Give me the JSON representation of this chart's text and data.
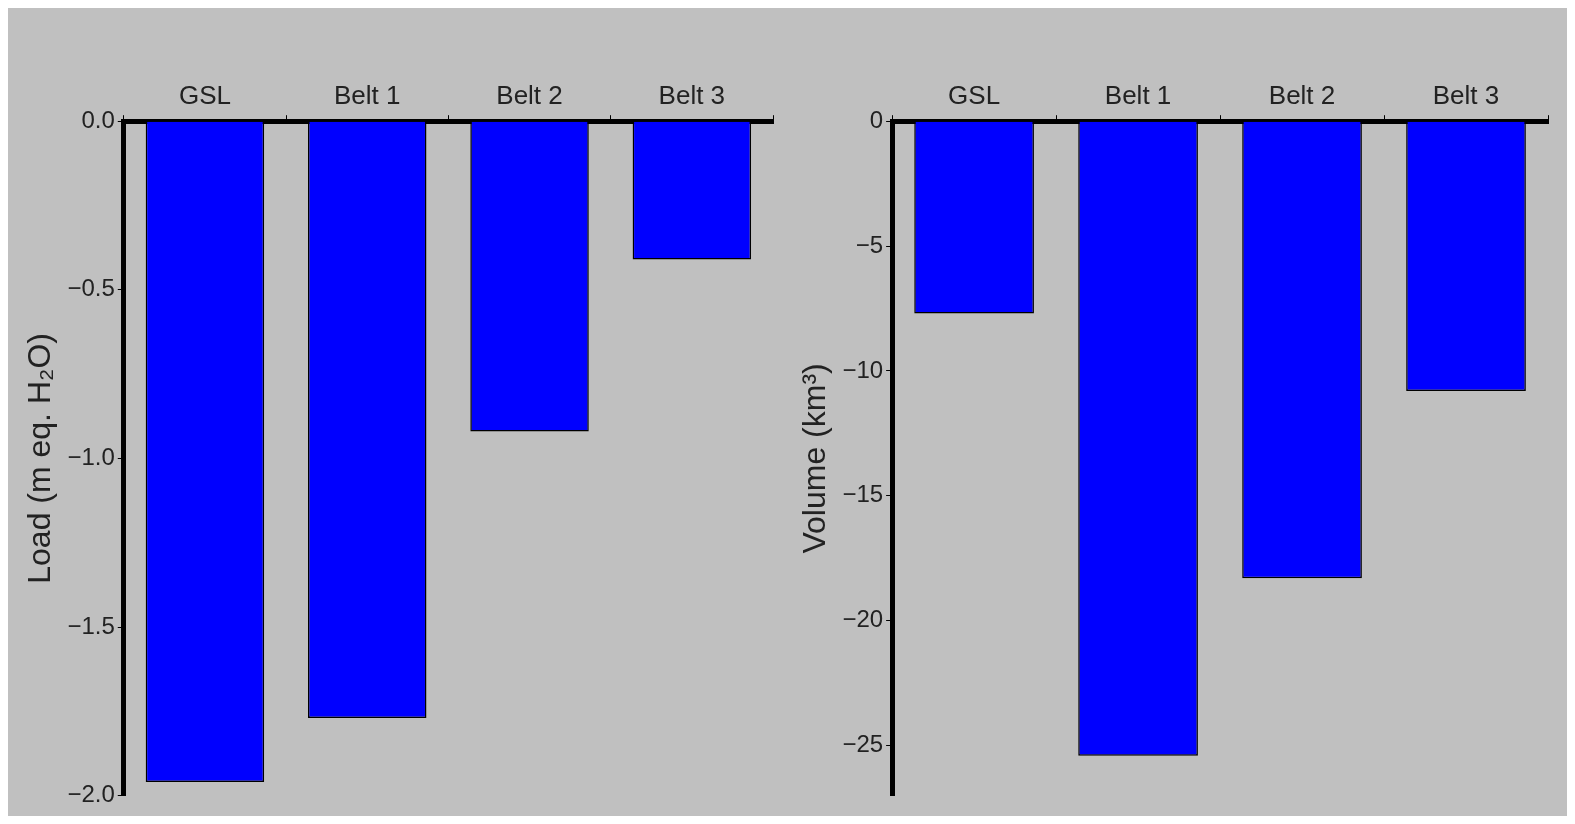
{
  "chart_data": [
    {
      "type": "bar",
      "ylabel": "Load (m eq. H₂O)",
      "categories": [
        "GSL",
        "Belt 1",
        "Belt 2",
        "Belt 3"
      ],
      "values": [
        -1.96,
        -1.77,
        -0.92,
        -0.41
      ],
      "color": "#0000ff",
      "ylim": [
        -2,
        0
      ],
      "yticks": [
        {
          "value": 0,
          "label": "0.0"
        },
        {
          "value": -0.5,
          "label": "−0.5"
        },
        {
          "value": -1,
          "label": "−1.0"
        },
        {
          "value": -1.5,
          "label": "−1.5"
        },
        {
          "value": -2,
          "label": "−2.0"
        }
      ],
      "grid": false,
      "legend": false
    },
    {
      "type": "bar",
      "ylabel": "Volume (km³)",
      "categories": [
        "GSL",
        "Belt 1",
        "Belt 2",
        "Belt 3"
      ],
      "values": [
        -7.7,
        -25.4,
        -18.3,
        -10.8
      ],
      "color": "#0000ff",
      "ylim": [
        -27,
        0
      ],
      "yticks": [
        {
          "value": 0,
          "label": "0"
        },
        {
          "value": -5,
          "label": "−5"
        },
        {
          "value": -10,
          "label": "−10"
        },
        {
          "value": -15,
          "label": "−15"
        },
        {
          "value": -20,
          "label": "−20"
        },
        {
          "value": -25,
          "label": "−25"
        }
      ],
      "grid": false,
      "legend": false
    }
  ]
}
